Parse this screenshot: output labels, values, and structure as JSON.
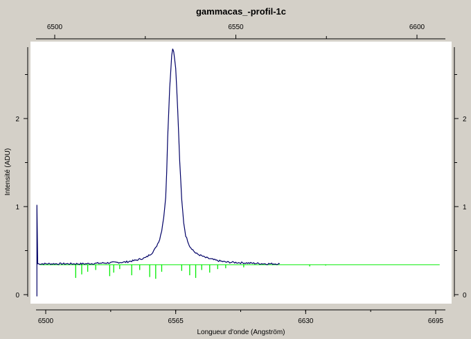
{
  "chart_data": {
    "type": "line",
    "title": "gammacas_-profil-1c",
    "xlabel": "Longueur d'onde (Angström)",
    "ylabel": "Intensité (ADU)",
    "bottom_x_range": [
      6495,
      6700
    ],
    "bottom_x_ticks": [
      "6500",
      "6565",
      "6630",
      "6695"
    ],
    "top_x_ticks": [
      "6500",
      "6550",
      "6600"
    ],
    "ylim": [
      -0.05,
      2.88
    ],
    "y_ticks": [
      "0",
      "1",
      "2"
    ],
    "grid": false,
    "colors": {
      "profile": "#000066",
      "reference": "#00ee00",
      "plot_bg": "#ffffff",
      "page_bg": "#d4d0c8"
    },
    "series": [
      {
        "role": "profile",
        "x": [
          6495.6,
          6496.0,
          6500,
          6510,
          6520,
          6530,
          6540,
          6545,
          6550,
          6553,
          6555,
          6557,
          6558,
          6559,
          6560,
          6560.5,
          6561,
          6562,
          6563,
          6563.5,
          6564,
          6565,
          6566,
          6567,
          6568,
          6569,
          6570,
          6572,
          6575,
          6580,
          6585,
          6590,
          6600,
          6610,
          6617
        ],
        "y": [
          1.02,
          0.35,
          0.35,
          0.35,
          0.35,
          0.36,
          0.37,
          0.39,
          0.42,
          0.47,
          0.53,
          0.63,
          0.73,
          0.88,
          1.1,
          1.4,
          1.8,
          2.35,
          2.72,
          2.8,
          2.76,
          2.58,
          2.1,
          1.52,
          1.08,
          0.82,
          0.67,
          0.55,
          0.47,
          0.42,
          0.39,
          0.37,
          0.36,
          0.35,
          0.35
        ]
      },
      {
        "role": "reference",
        "x": [
          6497,
          6700
        ],
        "y": [
          0.34,
          0.34
        ],
        "absorption_lines": [
          {
            "x": 6515,
            "depth": 0.15
          },
          {
            "x": 6518,
            "depth": 0.11
          },
          {
            "x": 6521,
            "depth": 0.08
          },
          {
            "x": 6525,
            "depth": 0.06
          },
          {
            "x": 6532,
            "depth": 0.13
          },
          {
            "x": 6534,
            "depth": 0.09
          },
          {
            "x": 6537,
            "depth": 0.05
          },
          {
            "x": 6543,
            "depth": 0.12
          },
          {
            "x": 6547,
            "depth": 0.06
          },
          {
            "x": 6552,
            "depth": 0.14
          },
          {
            "x": 6555,
            "depth": 0.16
          },
          {
            "x": 6558,
            "depth": 0.08
          },
          {
            "x": 6568,
            "depth": 0.07
          },
          {
            "x": 6572,
            "depth": 0.12
          },
          {
            "x": 6575,
            "depth": 0.15
          },
          {
            "x": 6578,
            "depth": 0.06
          },
          {
            "x": 6582,
            "depth": 0.09
          },
          {
            "x": 6586,
            "depth": 0.05
          },
          {
            "x": 6590,
            "depth": 0.04
          },
          {
            "x": 6599,
            "depth": 0.03
          },
          {
            "x": 6632,
            "depth": 0.02
          },
          {
            "x": 6640,
            "depth": 0.01
          }
        ]
      }
    ]
  }
}
